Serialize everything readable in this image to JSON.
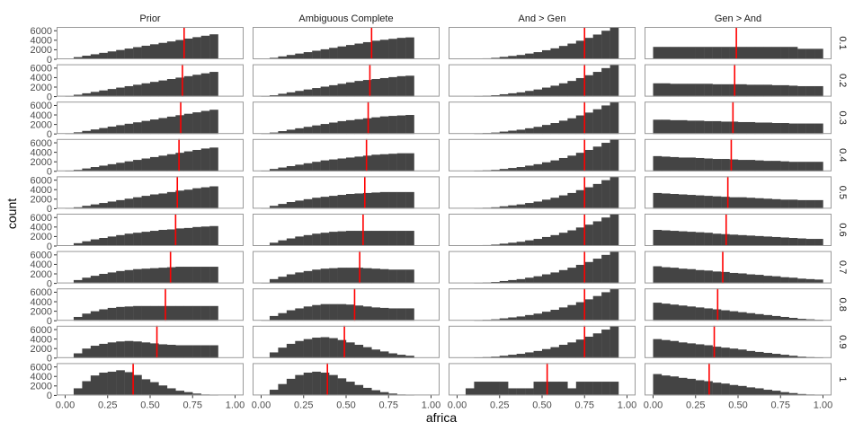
{
  "chart_data": {
    "type": "histogram-facet-grid",
    "xlabel": "africa",
    "ylabel": "count",
    "xlim": [
      0,
      1
    ],
    "ylim": [
      0,
      6800
    ],
    "x_ticks": [
      "0.00",
      "0.25",
      "0.50",
      "0.75",
      "1.00"
    ],
    "y_ticks": [
      "0",
      "2000",
      "4000",
      "6000"
    ],
    "col_labels": [
      "Prior",
      "Ambiguous Complete",
      "And > Gen",
      "Gen > And"
    ],
    "row_labels": [
      "0.1",
      "0.2",
      "0.3",
      "0.4",
      "0.5",
      "0.6",
      "0.7",
      "0.8",
      "0.9",
      "1"
    ],
    "colors": {
      "bar": "#444444",
      "mean_line": "#ff0000",
      "panel_border": "#999999"
    },
    "grid": false,
    "bins": {
      "count": 20,
      "start": 0,
      "end": 1,
      "width": 0.05
    },
    "panels": [
      [
        {
          "values": [
            150,
            450,
            750,
            1050,
            1350,
            1650,
            1950,
            2250,
            2550,
            2850,
            3150,
            3450,
            3750,
            4050,
            4350,
            4650,
            4950,
            5250,
            0,
            0
          ],
          "mean": 0.7
        },
        {
          "values": [
            120,
            400,
            700,
            1000,
            1300,
            1600,
            1900,
            2200,
            2500,
            2800,
            3100,
            3400,
            3700,
            4000,
            4300,
            4600,
            4900,
            5200,
            0,
            0
          ],
          "mean": 0.69
        },
        {
          "values": [
            100,
            350,
            650,
            950,
            1250,
            1550,
            1850,
            2150,
            2450,
            2750,
            3050,
            3350,
            3650,
            3950,
            4250,
            4550,
            4850,
            5100,
            0,
            0
          ],
          "mean": 0.68
        },
        {
          "values": [
            80,
            300,
            600,
            900,
            1200,
            1500,
            1800,
            2100,
            2400,
            2700,
            3000,
            3300,
            3600,
            3900,
            4200,
            4500,
            4800,
            5000,
            0,
            0
          ],
          "mean": 0.67
        },
        {
          "values": [
            80,
            300,
            600,
            900,
            1200,
            1500,
            1800,
            2100,
            2400,
            2700,
            3000,
            3200,
            3500,
            3800,
            4000,
            4300,
            4500,
            4700,
            0,
            0
          ],
          "mean": 0.66
        },
        {
          "values": [
            0,
            600,
            1000,
            1400,
            1700,
            2000,
            2300,
            2600,
            2800,
            3000,
            3200,
            3400,
            3500,
            3700,
            3800,
            4000,
            4100,
            4200,
            0,
            0
          ],
          "mean": 0.65
        },
        {
          "values": [
            0,
            700,
            1200,
            1600,
            2000,
            2300,
            2600,
            2800,
            3000,
            3100,
            3200,
            3300,
            3400,
            3500,
            3500,
            3500,
            3500,
            3500,
            0,
            0
          ],
          "mean": 0.62
        },
        {
          "values": [
            0,
            800,
            1500,
            2000,
            2400,
            2700,
            2900,
            3000,
            3100,
            3100,
            3100,
            3100,
            3100,
            3100,
            3100,
            3100,
            3100,
            3100,
            0,
            0
          ],
          "mean": 0.59
        },
        {
          "values": [
            0,
            1000,
            2000,
            2600,
            3000,
            3300,
            3500,
            3600,
            3500,
            3300,
            3100,
            2900,
            2800,
            2700,
            2700,
            2700,
            2700,
            2700,
            0,
            0
          ],
          "mean": 0.54
        },
        {
          "values": [
            0,
            1500,
            3000,
            4200,
            4800,
            5000,
            5300,
            4900,
            4300,
            3400,
            2800,
            2100,
            1500,
            1000,
            700,
            400,
            200,
            100,
            0,
            0
          ],
          "mean": 0.4
        }
      ],
      [
        {
          "values": [
            100,
            300,
            600,
            900,
            1200,
            1500,
            1800,
            2100,
            2400,
            2700,
            3000,
            3300,
            3600,
            3900,
            4100,
            4300,
            4500,
            4600,
            0,
            0
          ],
          "mean": 0.65
        },
        {
          "values": [
            100,
            300,
            600,
            900,
            1200,
            1500,
            1800,
            2100,
            2400,
            2700,
            3000,
            3300,
            3500,
            3700,
            3900,
            4100,
            4300,
            4400,
            0,
            0
          ],
          "mean": 0.64
        },
        {
          "values": [
            100,
            300,
            600,
            900,
            1200,
            1500,
            1800,
            2100,
            2400,
            2700,
            2900,
            3100,
            3300,
            3500,
            3700,
            3800,
            3900,
            4000,
            0,
            0
          ],
          "mean": 0.63
        },
        {
          "values": [
            100,
            500,
            800,
            1100,
            1400,
            1700,
            2000,
            2300,
            2500,
            2700,
            2900,
            3100,
            3300,
            3500,
            3600,
            3700,
            3800,
            3800,
            0,
            0
          ],
          "mean": 0.62
        },
        {
          "values": [
            100,
            600,
            1000,
            1400,
            1700,
            2000,
            2300,
            2500,
            2700,
            2900,
            3100,
            3200,
            3300,
            3400,
            3500,
            3500,
            3500,
            3500,
            0,
            0
          ],
          "mean": 0.61
        },
        {
          "values": [
            100,
            700,
            1200,
            1600,
            2000,
            2300,
            2600,
            2800,
            3000,
            3100,
            3200,
            3200,
            3200,
            3200,
            3200,
            3200,
            3200,
            3200,
            0,
            0
          ],
          "mean": 0.6
        },
        {
          "values": [
            100,
            900,
            1400,
            1900,
            2300,
            2600,
            2900,
            3100,
            3200,
            3300,
            3300,
            3300,
            3200,
            3100,
            3000,
            2900,
            2900,
            2900,
            0,
            0
          ],
          "mean": 0.58
        },
        {
          "values": [
            100,
            1000,
            1600,
            2200,
            2600,
            3000,
            3300,
            3500,
            3500,
            3500,
            3400,
            3200,
            3000,
            2800,
            2700,
            2600,
            2600,
            2600,
            0,
            0
          ],
          "mean": 0.55
        },
        {
          "values": [
            0,
            1200,
            2200,
            3000,
            3600,
            4000,
            4300,
            4400,
            4200,
            3800,
            3300,
            2800,
            2300,
            1800,
            1400,
            1000,
            700,
            500,
            0,
            0
          ],
          "mean": 0.49
        },
        {
          "values": [
            0,
            1200,
            2400,
            3500,
            4300,
            4800,
            5000,
            4800,
            4300,
            3600,
            2900,
            2200,
            1600,
            1100,
            700,
            400,
            200,
            100,
            0,
            0
          ],
          "mean": 0.39
        }
      ],
      [
        {
          "values": [
            0,
            0,
            100,
            200,
            300,
            500,
            700,
            900,
            1200,
            1500,
            1900,
            2300,
            2800,
            3300,
            3900,
            4500,
            5200,
            6000,
            6800,
            0
          ],
          "mean": 0.75
        },
        {
          "values": [
            0,
            0,
            100,
            200,
            300,
            500,
            700,
            900,
            1200,
            1500,
            1900,
            2300,
            2800,
            3300,
            3900,
            4500,
            5200,
            6000,
            6700,
            0
          ],
          "mean": 0.75
        },
        {
          "values": [
            0,
            0,
            100,
            200,
            300,
            500,
            700,
            900,
            1200,
            1500,
            1900,
            2300,
            2800,
            3300,
            3900,
            4500,
            5200,
            6000,
            6700,
            0
          ],
          "mean": 0.75
        },
        {
          "values": [
            0,
            0,
            100,
            200,
            300,
            500,
            700,
            900,
            1200,
            1500,
            1900,
            2300,
            2800,
            3300,
            3900,
            4500,
            5200,
            6000,
            6700,
            0
          ],
          "mean": 0.75
        },
        {
          "values": [
            0,
            0,
            100,
            200,
            300,
            500,
            700,
            900,
            1200,
            1500,
            1900,
            2300,
            2800,
            3300,
            3900,
            4500,
            5200,
            6000,
            6700,
            0
          ],
          "mean": 0.75
        },
        {
          "values": [
            0,
            0,
            100,
            200,
            300,
            500,
            700,
            900,
            1200,
            1500,
            1900,
            2300,
            2800,
            3300,
            3900,
            4500,
            5200,
            6000,
            6700,
            0
          ],
          "mean": 0.75
        },
        {
          "values": [
            0,
            0,
            100,
            200,
            300,
            500,
            700,
            900,
            1200,
            1500,
            1900,
            2300,
            2800,
            3300,
            3900,
            4500,
            5200,
            6000,
            6700,
            0
          ],
          "mean": 0.75
        },
        {
          "values": [
            0,
            0,
            100,
            200,
            300,
            500,
            700,
            900,
            1200,
            1500,
            1900,
            2300,
            2800,
            3300,
            3900,
            4500,
            5200,
            6000,
            6700,
            0
          ],
          "mean": 0.75
        },
        {
          "values": [
            0,
            0,
            100,
            200,
            300,
            500,
            700,
            900,
            1200,
            1500,
            1900,
            2300,
            2800,
            3300,
            3900,
            4500,
            5200,
            6000,
            6700,
            0
          ],
          "mean": 0.75
        },
        {
          "values": [
            0,
            1500,
            2900,
            2900,
            2900,
            2900,
            1500,
            1500,
            1500,
            2900,
            2900,
            2900,
            2900,
            1500,
            2900,
            2900,
            2900,
            2900,
            2900,
            0
          ],
          "mean": 0.53
        }
      ],
      [
        {
          "values": [
            2600,
            2600,
            2600,
            2600,
            2600,
            2600,
            2600,
            2600,
            2600,
            2600,
            2600,
            2600,
            2600,
            2600,
            2600,
            2600,
            2600,
            2200,
            2200,
            2200
          ],
          "mean": 0.49
        },
        {
          "values": [
            2800,
            2800,
            2700,
            2700,
            2700,
            2700,
            2700,
            2600,
            2600,
            2600,
            2600,
            2500,
            2500,
            2500,
            2400,
            2400,
            2300,
            2200,
            2200,
            2200
          ],
          "mean": 0.48
        },
        {
          "values": [
            3000,
            3000,
            2900,
            2900,
            2800,
            2800,
            2700,
            2700,
            2600,
            2600,
            2500,
            2500,
            2400,
            2400,
            2300,
            2300,
            2200,
            2200,
            2200,
            2200
          ],
          "mean": 0.47
        },
        {
          "values": [
            3200,
            3100,
            3000,
            2900,
            2900,
            2800,
            2700,
            2600,
            2600,
            2500,
            2400,
            2400,
            2300,
            2200,
            2200,
            2100,
            2000,
            2000,
            2000,
            2000
          ],
          "mean": 0.46
        },
        {
          "values": [
            3300,
            3200,
            3100,
            3000,
            2900,
            2800,
            2700,
            2600,
            2500,
            2400,
            2400,
            2300,
            2200,
            2100,
            2000,
            1900,
            1900,
            1800,
            1800,
            1800
          ],
          "mean": 0.44
        },
        {
          "values": [
            3400,
            3300,
            3200,
            3100,
            3000,
            2900,
            2800,
            2600,
            2500,
            2400,
            2300,
            2200,
            2100,
            2000,
            1900,
            1800,
            1700,
            1600,
            1500,
            1500
          ],
          "mean": 0.43
        },
        {
          "values": [
            3600,
            3400,
            3300,
            3100,
            3000,
            2800,
            2700,
            2500,
            2400,
            2200,
            2100,
            1900,
            1800,
            1600,
            1500,
            1300,
            1200,
            1000,
            900,
            800
          ],
          "mean": 0.41
        },
        {
          "values": [
            3800,
            3600,
            3400,
            3200,
            3000,
            2800,
            2600,
            2400,
            2200,
            2000,
            1800,
            1600,
            1400,
            1200,
            1000,
            800,
            600,
            400,
            300,
            200
          ],
          "mean": 0.38
        },
        {
          "values": [
            4000,
            3800,
            3600,
            3300,
            3100,
            2900,
            2700,
            2400,
            2200,
            2000,
            1800,
            1500,
            1300,
            1100,
            900,
            700,
            500,
            300,
            200,
            100
          ],
          "mean": 0.36
        },
        {
          "values": [
            4500,
            4200,
            4000,
            3700,
            3500,
            3200,
            3000,
            2700,
            2500,
            2200,
            2000,
            1700,
            1500,
            1200,
            1000,
            700,
            500,
            300,
            200,
            100
          ],
          "mean": 0.33
        }
      ]
    ]
  }
}
